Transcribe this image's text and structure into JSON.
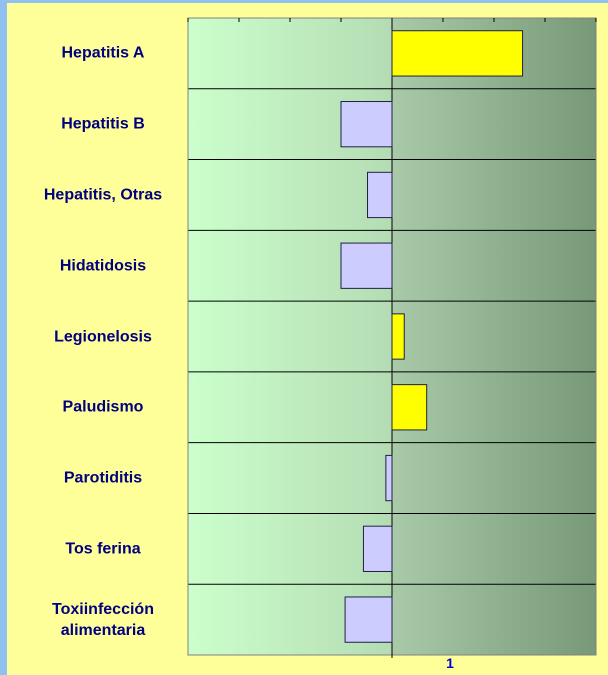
{
  "chart_data": {
    "type": "bar",
    "orientation": "horizontal",
    "categories": [
      "Hepatitis A",
      "Hepatitis B",
      "Hepatitis, Otras",
      "Hidatidosis",
      "Legionelosis",
      "Paludismo",
      "Parotiditis",
      "Tos ferina",
      "Toxiinfección alimentaria"
    ],
    "values": [
      1.64,
      0.75,
      0.88,
      0.75,
      1.06,
      1.17,
      0.97,
      0.86,
      0.77
    ],
    "baseline": 1,
    "above_color": "#ffff00",
    "below_color": "#ccccff",
    "xlim": [
      0,
      2
    ],
    "xticks": [
      1
    ],
    "minor_xticks": [
      0,
      0.25,
      0.5,
      0.75,
      1,
      1.25,
      1.5,
      1.75,
      2
    ]
  }
}
